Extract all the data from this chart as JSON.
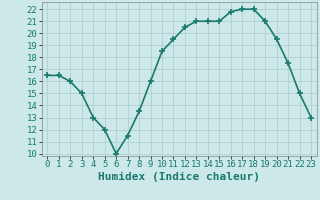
{
  "x": [
    0,
    1,
    2,
    3,
    4,
    5,
    6,
    7,
    8,
    9,
    10,
    11,
    12,
    13,
    14,
    15,
    16,
    17,
    18,
    19,
    20,
    21,
    22,
    23
  ],
  "y": [
    16.5,
    16.5,
    16.0,
    15.0,
    13.0,
    12.0,
    10.0,
    11.5,
    13.5,
    16.0,
    18.5,
    19.5,
    20.5,
    21.0,
    21.0,
    21.0,
    21.8,
    22.0,
    22.0,
    21.0,
    19.5,
    17.5,
    15.0,
    13.0
  ],
  "xlim": [
    -0.5,
    23.5
  ],
  "ylim": [
    9.8,
    22.6
  ],
  "yticks": [
    10,
    11,
    12,
    13,
    14,
    15,
    16,
    17,
    18,
    19,
    20,
    21,
    22
  ],
  "xticks": [
    0,
    1,
    2,
    3,
    4,
    5,
    6,
    7,
    8,
    9,
    10,
    11,
    12,
    13,
    14,
    15,
    16,
    17,
    18,
    19,
    20,
    21,
    22,
    23
  ],
  "xlabel": "Humidex (Indice chaleur)",
  "line_color": "#1a7a6e",
  "marker": "+",
  "marker_size": 5,
  "bg_color": "#cce8e8",
  "grid_color": "#aacccc",
  "tick_label_fontsize": 6.5,
  "xlabel_fontsize": 8,
  "line_width": 1.2
}
